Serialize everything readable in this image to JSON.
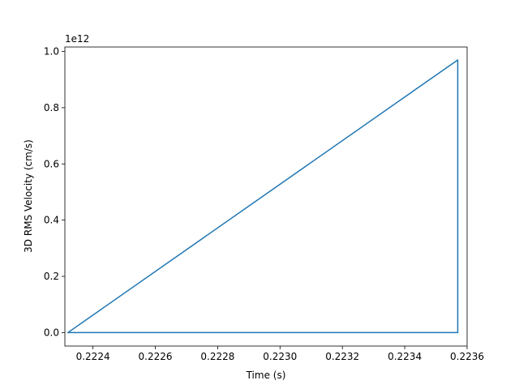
{
  "chart_data": {
    "type": "line",
    "xlabel": "Time (s)",
    "ylabel": "3D RMS Velocity (cm/s)",
    "y_offset_label": "1e12",
    "xlim": [
      0.22231,
      0.2236
    ],
    "ylim": [
      -0.048,
      1.016
    ],
    "x_ticks": [
      0.2224,
      0.2226,
      0.2228,
      0.223,
      0.2232,
      0.2234,
      0.2236
    ],
    "x_tick_labels": [
      "0.2224",
      "0.2226",
      "0.2228",
      "0.2230",
      "0.2232",
      "0.2234",
      "0.2236"
    ],
    "y_ticks": [
      0.0,
      0.2,
      0.4,
      0.6,
      0.8,
      1.0
    ],
    "y_tick_labels": [
      "0.0",
      "0.2",
      "0.4",
      "0.6",
      "0.8",
      "1.0"
    ],
    "grid": false,
    "series": [
      {
        "color": "#1f77b4",
        "x": [
          0.22232,
          0.22357,
          0.22357,
          0.22232,
          0.22357
        ],
        "y": [
          0.0,
          0.97,
          0.0,
          0.0,
          0.0
        ]
      }
    ]
  }
}
